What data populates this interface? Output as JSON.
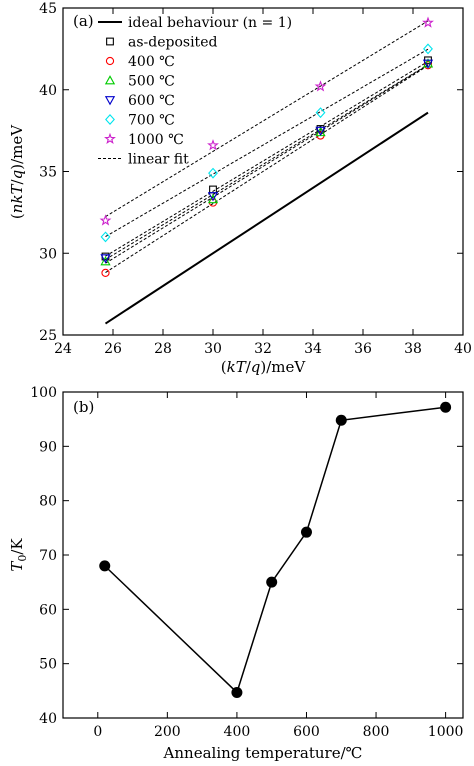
{
  "chart_data": [
    {
      "type": "scatter",
      "panel_label": "(a)",
      "xlabel": "(kT/q)/meV",
      "ylabel": "(nkT/q)/meV",
      "xlim": [
        24,
        40
      ],
      "ylim": [
        25,
        45
      ],
      "xticks": [
        24,
        26,
        28,
        30,
        32,
        34,
        36,
        38,
        40
      ],
      "yticks": [
        25,
        30,
        35,
        40,
        45
      ],
      "grid": false,
      "legend_position": "top-left",
      "x": [
        25.7,
        30.0,
        34.3,
        38.6
      ],
      "ideal_line": {
        "name": "ideal behaviour (n = 1)",
        "x": [
          25.7,
          38.6
        ],
        "y": [
          25.7,
          38.6
        ]
      },
      "fit_label": "linear fit",
      "series": [
        {
          "name": "as-deposited",
          "marker": "square",
          "color": "#000000",
          "values": [
            29.8,
            33.9,
            37.6,
            41.8
          ]
        },
        {
          "name": "400 ℃",
          "marker": "circle",
          "color": "#ff0000",
          "values": [
            28.8,
            33.1,
            37.2,
            41.5
          ]
        },
        {
          "name": "500 ℃",
          "marker": "triangle-up",
          "color": "#00cc00",
          "values": [
            29.5,
            33.3,
            37.4,
            41.6
          ]
        },
        {
          "name": "600 ℃",
          "marker": "triangle-down",
          "color": "#0000cc",
          "values": [
            29.7,
            33.5,
            37.5,
            41.6
          ]
        },
        {
          "name": "700 ℃",
          "marker": "diamond",
          "color": "#00e5ee",
          "values": [
            31.0,
            34.9,
            38.6,
            42.5
          ]
        },
        {
          "name": "1000 ℃",
          "marker": "star",
          "color": "#cc22cc",
          "values": [
            32.0,
            36.6,
            40.2,
            44.1
          ]
        }
      ]
    },
    {
      "type": "line",
      "panel_label": "(b)",
      "xlabel": "Annealing temperature/℃",
      "ylabel": "T0/K",
      "xlim": [
        -100,
        1050
      ],
      "ylim": [
        40,
        100
      ],
      "xticks": [
        0,
        200,
        400,
        600,
        800,
        1000
      ],
      "yticks": [
        40,
        50,
        60,
        70,
        80,
        90,
        100
      ],
      "grid": false,
      "series": [
        {
          "x": [
            20,
            400,
            500,
            600,
            700,
            1000
          ],
          "values": [
            68.0,
            44.7,
            65.0,
            74.2,
            94.8,
            97.2
          ]
        }
      ]
    }
  ]
}
